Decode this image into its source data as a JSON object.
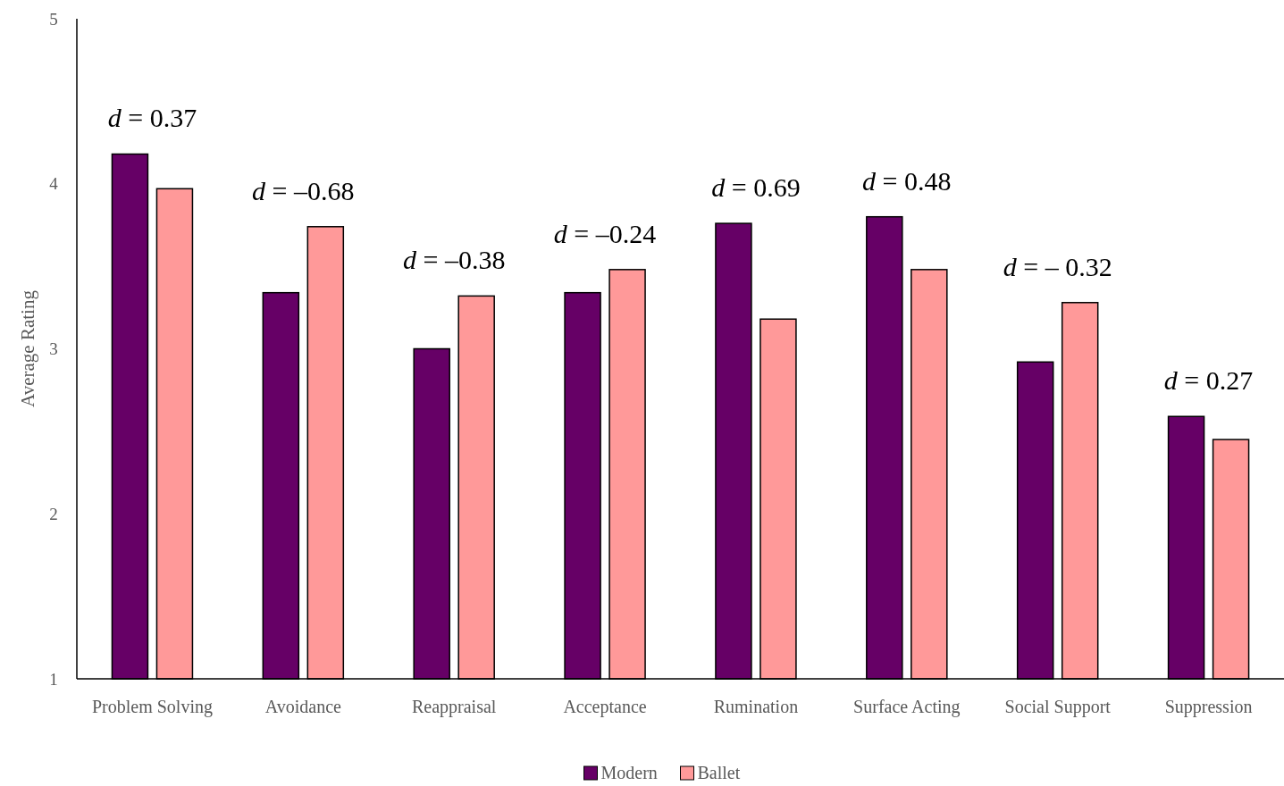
{
  "chart_data": {
    "type": "bar",
    "ylabel": "Average Rating",
    "categories": [
      "Problem Solving",
      "Avoidance",
      "Reappraisal",
      "Acceptance",
      "Rumination",
      "Surface Acting",
      "Social Support",
      "Suppression"
    ],
    "series": [
      {
        "name": "Modern",
        "color": "#660066",
        "values": [
          4.18,
          3.34,
          3.0,
          3.34,
          3.76,
          3.8,
          2.92,
          2.59
        ]
      },
      {
        "name": "Ballet",
        "color": "#ff9999",
        "values": [
          3.97,
          3.74,
          3.32,
          3.48,
          3.18,
          3.48,
          3.28,
          2.45
        ]
      }
    ],
    "ylim": [
      1,
      5
    ],
    "yticks": [
      1,
      2,
      3,
      4,
      5
    ],
    "grid": false,
    "legend": "bottom",
    "annotations": [
      "d = 0.37",
      "d = –0.68",
      "d = –0.38",
      "d = –0.24",
      "d = 0.69",
      "d = 0.48",
      "d = – 0.32",
      "d = 0.27"
    ]
  }
}
